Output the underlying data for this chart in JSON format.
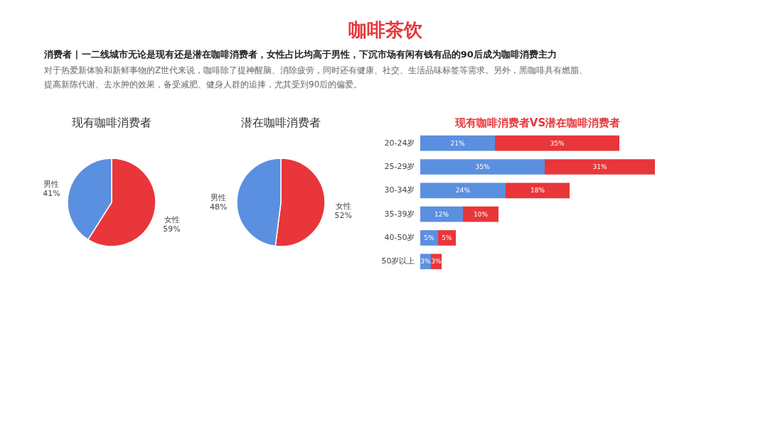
{
  "chart_data": [
    {
      "type": "other",
      "title": "咖啡茶饮",
      "subtitle": "消费者 | 一二线城市无论是现有还是潜在咖啡消费者，女性占比均高于男性，下沉市场有闲有钱有品的90后成为咖啡消费主力",
      "annotations": [
        "对于热爱新体验和新鲜事物的Z世代来说，咖啡除了提神醒脑、消除疲劳，同时还有健康、社交、生活品味标签等需求。另外，黑咖啡具有燃脂、",
        "提高新陈代谢、去水肿的效果，备受减肥、健身人群的追捧，尤其受到90后的偏爱。"
      ]
    },
    {
      "type": "pie",
      "title": "现有咖啡消费者",
      "categories": [
        "女性",
        "男性"
      ],
      "values": [
        59,
        41
      ],
      "value_labels": [
        "59%",
        "41%"
      ],
      "colors": [
        "#e8363a",
        "#5b8fe0"
      ]
    },
    {
      "type": "pie",
      "title": "潜在咖啡消费者",
      "categories": [
        "女性",
        "男性"
      ],
      "values": [
        52,
        48
      ],
      "value_labels": [
        "52%",
        "48%"
      ],
      "colors": [
        "#e8363a",
        "#5b8fe0"
      ]
    },
    {
      "type": "bar",
      "title": "现有咖啡消费者VS潜在咖啡消费者",
      "orientation": "horizontal",
      "stacked": true,
      "categories": [
        "20-24岁",
        "25-29岁",
        "30-34岁",
        "35-39岁",
        "40-50岁",
        "50岁以上"
      ],
      "series": [
        {
          "color": "#5b8fe0",
          "values": [
            21,
            35,
            24,
            12,
            5,
            3
          ],
          "value_labels": [
            "21%",
            "35%",
            "24%",
            "12%",
            "5%",
            "3%"
          ]
        },
        {
          "color": "#e8363a",
          "values": [
            35,
            31,
            18,
            10,
            5,
            3
          ],
          "value_labels": [
            "35%",
            "31%",
            "18%",
            "10%",
            "5%",
            "3%"
          ]
        }
      ]
    }
  ]
}
